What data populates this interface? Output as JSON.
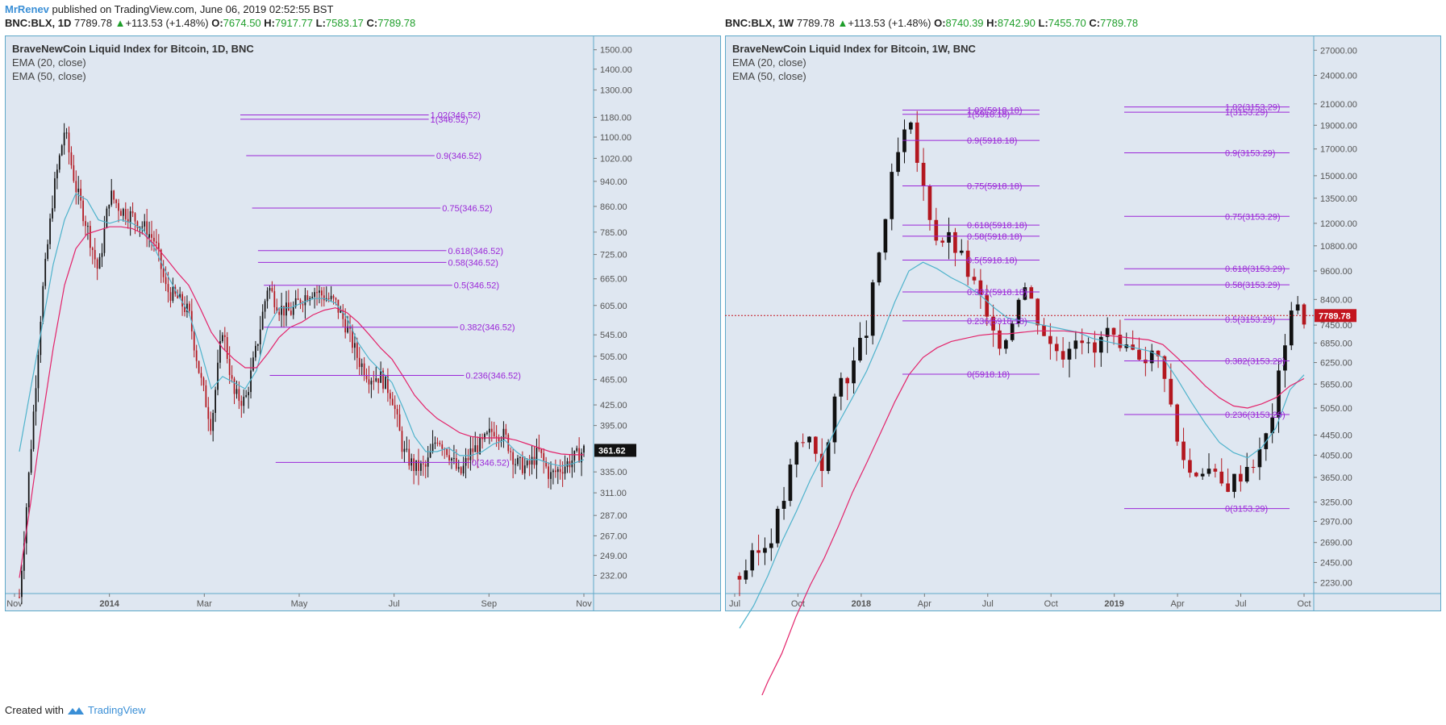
{
  "header": {
    "author": "MrRenev",
    "published": "published on TradingView.com, June 06, 2019 02:52:55 BST"
  },
  "left_header": {
    "symbol": "BNC:BLX, 1D",
    "price": "7789.78",
    "change": "+113.53 (+1.48%)",
    "o_label": "O:",
    "o": "7674.50",
    "h_label": "H:",
    "h": "7917.77",
    "l_label": "L:",
    "l": "7583.17",
    "c_label": "C:",
    "c": "7789.78"
  },
  "right_header": {
    "symbol": "BNC:BLX, 1W",
    "price": "7789.78",
    "change": "+113.53 (+1.48%)",
    "o_label": "O:",
    "o": "8740.39",
    "h_label": "H:",
    "h": "8742.90",
    "l_label": "L:",
    "l": "7455.70",
    "c_label": "C:",
    "c": "7789.78"
  },
  "footer": {
    "created": "Created with",
    "brand": "TradingView"
  },
  "colors": {
    "panel_bg": "#dfe7f1",
    "border": "#5fa8c9",
    "bull": "#111111",
    "bear": "#b3171f",
    "ema20": "#4fb3cc",
    "ema50": "#e3236a",
    "fib": "#9b27d8",
    "price_tag": "#111111",
    "price_tag_right": "#c3151f"
  },
  "chart_data": [
    {
      "type": "candlestick",
      "title": "BraveNewCoin Liquid Index for Bitcoin, 1D, BNC",
      "indicators": [
        "EMA (20, close)",
        "EMA (50, close)"
      ],
      "x_ticks": [
        "Nov",
        "2014",
        "Mar",
        "May",
        "Jul",
        "Sep",
        "Nov"
      ],
      "y_scale": "log",
      "y_ticks": [
        "1500.00",
        "1400.00",
        "1300.00",
        "1180.00",
        "1100.00",
        "1020.00",
        "940.00",
        "860.00",
        "785.00",
        "725.00",
        "665.00",
        "605.00",
        "545.00",
        "505.00",
        "465.00",
        "425.00",
        "395.00",
        "335.00",
        "311.00",
        "287.00",
        "267.00",
        "249.00",
        "232.00"
      ],
      "ylim": [
        220,
        1560
      ],
      "last_price": "361.62",
      "series": [
        {
          "name": "price",
          "x": [
            0,
            0.02,
            0.04,
            0.06,
            0.08,
            0.1,
            0.12,
            0.14,
            0.16,
            0.18,
            0.2,
            0.22,
            0.24,
            0.26,
            0.28,
            0.3,
            0.32,
            0.34,
            0.36,
            0.38,
            0.4,
            0.42,
            0.44,
            0.46,
            0.48,
            0.5,
            0.52,
            0.54,
            0.56,
            0.58,
            0.6,
            0.62,
            0.64,
            0.66,
            0.68,
            0.7,
            0.72,
            0.74,
            0.76,
            0.78,
            0.8,
            0.82,
            0.84,
            0.86,
            0.88,
            0.9,
            0.92,
            0.94,
            0.96,
            0.98,
            1.0
          ],
          "y": [
            215,
            360,
            620,
            900,
            1130,
            920,
            800,
            680,
            900,
            850,
            830,
            800,
            760,
            640,
            620,
            590,
            470,
            395,
            560,
            440,
            430,
            520,
            650,
            600,
            590,
            620,
            640,
            625,
            610,
            560,
            500,
            470,
            470,
            440,
            360,
            340,
            340,
            380,
            360,
            330,
            360,
            370,
            390,
            380,
            345,
            340,
            360,
            330,
            340,
            350,
            362
          ]
        }
      ],
      "ema20": [
        360,
        450,
        560,
        700,
        820,
        900,
        880,
        820,
        810,
        820,
        810,
        790,
        740,
        680,
        630,
        590,
        520,
        450,
        470,
        460,
        450,
        480,
        560,
        600,
        600,
        610,
        620,
        620,
        610,
        580,
        530,
        500,
        480,
        460,
        420,
        380,
        360,
        360,
        365,
        355,
        355,
        360,
        370,
        375,
        360,
        350,
        350,
        345,
        342,
        345,
        350
      ],
      "ema50": [
        230,
        300,
        400,
        520,
        650,
        740,
        780,
        790,
        800,
        800,
        795,
        780,
        750,
        715,
        680,
        650,
        600,
        550,
        520,
        500,
        485,
        485,
        510,
        540,
        560,
        570,
        585,
        595,
        600,
        590,
        570,
        545,
        520,
        500,
        470,
        440,
        420,
        405,
        395,
        385,
        380,
        378,
        378,
        378,
        375,
        370,
        365,
        360,
        357,
        356,
        356
      ],
      "fib_levels": [
        {
          "label": "1.02(346.52)",
          "price": 1190,
          "x0": 0.4,
          "x1": 0.72
        },
        {
          "label": "1(346.52)",
          "price": 1172,
          "x0": 0.4,
          "x1": 0.72
        },
        {
          "label": "0.9(346.52)",
          "price": 1030,
          "x0": 0.41,
          "x1": 0.73
        },
        {
          "label": "0.75(346.52)",
          "price": 855,
          "x0": 0.42,
          "x1": 0.74
        },
        {
          "label": "0.618(346.52)",
          "price": 735,
          "x0": 0.43,
          "x1": 0.75
        },
        {
          "label": "0.58(346.52)",
          "price": 705,
          "x0": 0.43,
          "x1": 0.75
        },
        {
          "label": "0.5(346.52)",
          "price": 650,
          "x0": 0.44,
          "x1": 0.76
        },
        {
          "label": "0.382(346.52)",
          "price": 560,
          "x0": 0.44,
          "x1": 0.77
        },
        {
          "label": "0.236(346.52)",
          "price": 472,
          "x0": 0.45,
          "x1": 0.78
        },
        {
          "label": "0(346.52)",
          "price": 346.52,
          "x0": 0.46,
          "x1": 0.79
        }
      ]
    },
    {
      "type": "candlestick",
      "title": "BraveNewCoin Liquid Index for Bitcoin, 1W, BNC",
      "indicators": [
        "EMA (20, close)",
        "EMA (50, close)"
      ],
      "x_ticks": [
        "Jul",
        "Oct",
        "2018",
        "Apr",
        "Jul",
        "Oct",
        "2019",
        "Apr",
        "Jul",
        "Oct"
      ],
      "y_scale": "log",
      "y_ticks": [
        "27000.00",
        "24000.00",
        "21000.00",
        "19000.00",
        "17000.00",
        "15000.00",
        "13500.00",
        "12000.00",
        "10800.00",
        "9600.00",
        "8400.00",
        "7450.00",
        "6850.00",
        "6250.00",
        "5650.00",
        "5050.00",
        "4450.00",
        "4050.00",
        "3650.00",
        "3250.00",
        "2970.00",
        "2690.00",
        "2450.00",
        "2230.00"
      ],
      "ylim": [
        2150,
        28500
      ],
      "last_price": "7789.78",
      "series": [
        {
          "name": "price",
          "x": [
            0,
            0.025,
            0.05,
            0.075,
            0.1,
            0.125,
            0.15,
            0.175,
            0.2,
            0.225,
            0.25,
            0.275,
            0.3,
            0.325,
            0.35,
            0.375,
            0.4,
            0.425,
            0.45,
            0.475,
            0.5,
            0.525,
            0.55,
            0.575,
            0.6,
            0.625,
            0.65,
            0.675,
            0.7,
            0.725,
            0.75,
            0.775,
            0.8,
            0.825,
            0.85,
            0.875,
            0.9,
            0.925,
            0.95,
            0.975,
            1.0
          ],
          "y": [
            2300,
            2500,
            2700,
            3200,
            4200,
            4400,
            3800,
            5700,
            6100,
            7300,
            10900,
            15800,
            19200,
            14100,
            11200,
            11100,
            9800,
            8500,
            6900,
            7100,
            9300,
            7900,
            6800,
            6600,
            7400,
            6400,
            7300,
            6400,
            6600,
            6500,
            6300,
            4300,
            3700,
            3900,
            3500,
            3600,
            3900,
            4100,
            5300,
            8200,
            7789
          ]
        }
      ],
      "ema20": [
        1800,
        2000,
        2300,
        2700,
        3100,
        3600,
        4100,
        4700,
        5300,
        6000,
        7000,
        8300,
        9600,
        10000,
        9700,
        9300,
        9000,
        8600,
        8100,
        7700,
        7600,
        7500,
        7400,
        7300,
        7200,
        7000,
        6900,
        6800,
        6700,
        6600,
        6400,
        5800,
        5200,
        4700,
        4300,
        4100,
        4000,
        4200,
        4600,
        5500,
        5900
      ],
      "ema50": [
        1000,
        1200,
        1400,
        1600,
        1900,
        2200,
        2500,
        2900,
        3400,
        3900,
        4500,
        5200,
        5900,
        6400,
        6700,
        6900,
        7000,
        7100,
        7150,
        7150,
        7200,
        7250,
        7250,
        7250,
        7200,
        7150,
        7100,
        7050,
        7000,
        6950,
        6800,
        6400,
        6000,
        5600,
        5300,
        5100,
        5050,
        5150,
        5300,
        5600,
        5800
      ],
      "fib_levels_a": [
        {
          "label": "1.02(5918.18)",
          "price": 20400
        },
        {
          "label": "1(5918.18)",
          "price": 20000
        },
        {
          "label": "0.9(5918.18)",
          "price": 17700
        },
        {
          "label": "0.75(5918.18)",
          "price": 14300
        },
        {
          "label": "0.618(5918.18)",
          "price": 11900
        },
        {
          "label": "0.58(5918.18)",
          "price": 11300
        },
        {
          "label": "0.5(5918.18)",
          "price": 10100
        },
        {
          "label": "0.382(5918.18)",
          "price": 8700
        },
        {
          "label": "0.236(5918.18)",
          "price": 7600
        },
        {
          "label": "0(5918.18)",
          "price": 5918.18
        }
      ],
      "fib_levels_b": [
        {
          "label": "1.02(3153.29)",
          "price": 20700
        },
        {
          "label": "1(3153.29)",
          "price": 20200
        },
        {
          "label": "0.9(3153.29)",
          "price": 16700
        },
        {
          "label": "0.75(3153.29)",
          "price": 12400
        },
        {
          "label": "0.618(3153.29)",
          "price": 9700
        },
        {
          "label": "0.58(3153.29)",
          "price": 9000
        },
        {
          "label": "0.5(3153.29)",
          "price": 7650
        },
        {
          "label": "0.382(3153.29)",
          "price": 6300
        },
        {
          "label": "0.236(3153.29)",
          "price": 4900
        },
        {
          "label": "0(3153.29)",
          "price": 3153.29
        }
      ]
    }
  ]
}
